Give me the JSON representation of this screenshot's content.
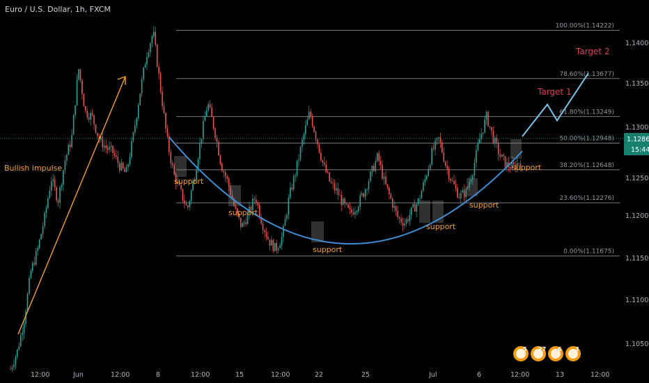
{
  "symbol": {
    "title": "Euro / U.S. Dollar, 1h, FXCM"
  },
  "chart_data": {
    "type": "candlestick",
    "title": "Euro / U.S. Dollar, 1h, FXCM",
    "ylim": [
      1.104,
      1.145
    ],
    "y_ticks": [
      "1.14000",
      "1.13500",
      "1.13000",
      "1.12500",
      "1.12000",
      "1.11500",
      "1.11000",
      "1.10500"
    ],
    "x_ticks": [
      "12:00",
      "Jun",
      "12:00",
      "8",
      "12:00",
      "15",
      "12:00",
      "22",
      "25",
      "Jul",
      "6",
      "12:00",
      "13",
      "12:00"
    ],
    "last_price": "1.12865",
    "countdown": "15:44",
    "fib_levels": [
      {
        "label": "100.00%(1.14222)",
        "value": 1.14222
      },
      {
        "label": "78.60%(1.13677)",
        "value": 1.13677
      },
      {
        "label": "61.80%(1.13249)",
        "value": 1.13249
      },
      {
        "label": "50.00%(1.12948)",
        "value": 1.12948
      },
      {
        "label": "38.20%(1.12648)",
        "value": 1.12648
      },
      {
        "label": "23.60%(1.12276)",
        "value": 1.12276
      },
      {
        "label": "0.00%(1.11675)",
        "value": 1.11675
      }
    ],
    "annotations": {
      "bullish_impulse": "Bullish impulse",
      "target_1": "Target 1",
      "target_2": "Target 2",
      "support_labels": [
        "support",
        "support",
        "support",
        "support",
        "support",
        "support"
      ]
    },
    "price_path": [
      1.104,
      1.106,
      1.1095,
      1.115,
      1.1175,
      1.121,
      1.1255,
      1.123,
      1.1275,
      1.13,
      1.138,
      1.133,
      1.1325,
      1.13,
      1.129,
      1.1285,
      1.127,
      1.126,
      1.13,
      1.135,
      1.1395,
      1.142,
      1.136,
      1.13,
      1.126,
      1.124,
      1.122,
      1.1255,
      1.13,
      1.134,
      1.131,
      1.127,
      1.125,
      1.122,
      1.12,
      1.1215,
      1.1235,
      1.1205,
      1.1185,
      1.1175,
      1.119,
      1.1235,
      1.1265,
      1.13,
      1.133,
      1.13,
      1.127,
      1.125,
      1.124,
      1.1225,
      1.1215,
      1.1225,
      1.124,
      1.126,
      1.128,
      1.125,
      1.123,
      1.121,
      1.1205,
      1.1218,
      1.123,
      1.1255,
      1.1285,
      1.13,
      1.127,
      1.125,
      1.1235,
      1.124,
      1.1265,
      1.13,
      1.1325,
      1.13,
      1.128,
      1.127,
      1.1268,
      1.1275
    ]
  },
  "colors": {
    "up": "#26a69a",
    "down": "#ef5350",
    "grid_fib": "#8a8c94",
    "curve": "#3f8fd8",
    "projection": "#7cc4ec",
    "impulse_arrow": "#f7a028",
    "support_box": "#8a8a8a",
    "last_price_badge": "#17816f",
    "price_line": "#26a69a"
  },
  "flag_badges": [
    "5",
    "27",
    "6",
    "3"
  ]
}
